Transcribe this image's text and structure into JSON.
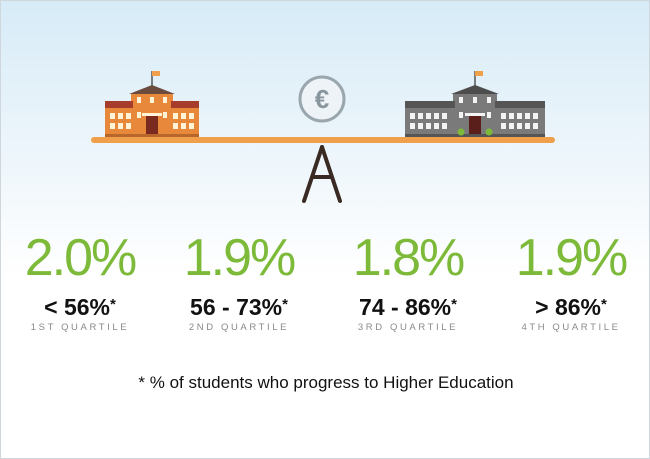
{
  "currency_symbol": "€",
  "stats": [
    {
      "value": "2.0%",
      "range": "< 56%",
      "asterisk": "*",
      "quartile": "1ST QUARTILE"
    },
    {
      "value": "1.9%",
      "range": "56 - 73%",
      "asterisk": "*",
      "quartile": "2ND QUARTILE"
    },
    {
      "value": "1.8%",
      "range": "74 - 86%",
      "asterisk": "*",
      "quartile": "3RD QUARTILE"
    },
    {
      "value": "1.9%",
      "range": "> 86%",
      "asterisk": "*",
      "quartile": "4TH QUARTILE"
    }
  ],
  "footnote": "* % of students who progress to Higher Education",
  "colors": {
    "accent_green": "#7dba3a",
    "beam_orange": "#f0a04b",
    "school_orange": "#e8883a",
    "school_gray": "#7a7a7a"
  }
}
